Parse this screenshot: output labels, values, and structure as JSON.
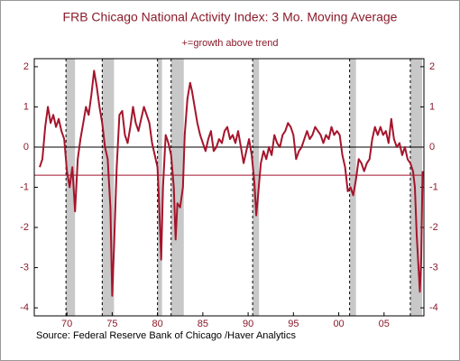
{
  "chart_data": {
    "type": "line",
    "title": "FRB Chicago National Activity Index: 3 Mo. Moving Average",
    "subtitle": "+=growth above trend",
    "source": "Source:  Federal Reserve Bank of Chicago /Haver Analytics",
    "x": [
      1967.0,
      1967.3,
      1967.6,
      1967.9,
      1968.2,
      1968.5,
      1968.8,
      1969.1,
      1969.4,
      1969.7,
      1970.0,
      1970.3,
      1970.6,
      1970.9,
      1971.2,
      1971.5,
      1971.8,
      1972.1,
      1972.4,
      1972.7,
      1973.0,
      1973.3,
      1973.6,
      1973.9,
      1974.2,
      1974.5,
      1974.8,
      1975.0,
      1975.2,
      1975.5,
      1975.8,
      1976.1,
      1976.4,
      1976.7,
      1977.0,
      1977.3,
      1977.6,
      1977.9,
      1978.2,
      1978.5,
      1978.8,
      1979.1,
      1979.4,
      1979.7,
      1980.0,
      1980.2,
      1980.4,
      1980.6,
      1980.9,
      1981.2,
      1981.5,
      1981.8,
      1982.0,
      1982.2,
      1982.5,
      1982.8,
      1983.0,
      1983.3,
      1983.6,
      1983.8,
      1984.1,
      1984.4,
      1984.7,
      1985.0,
      1985.3,
      1985.6,
      1985.9,
      1986.2,
      1986.5,
      1986.8,
      1987.1,
      1987.4,
      1987.7,
      1988.0,
      1988.3,
      1988.6,
      1988.9,
      1989.2,
      1989.5,
      1989.8,
      1990.1,
      1990.4,
      1990.7,
      1990.9,
      1991.1,
      1991.4,
      1991.7,
      1992.0,
      1992.3,
      1992.6,
      1992.9,
      1993.2,
      1993.5,
      1993.8,
      1994.1,
      1994.4,
      1994.7,
      1995.0,
      1995.3,
      1995.6,
      1995.9,
      1996.2,
      1996.5,
      1996.8,
      1997.1,
      1997.4,
      1997.7,
      1998.0,
      1998.3,
      1998.6,
      1998.9,
      1999.2,
      1999.5,
      1999.8,
      2000.1,
      2000.4,
      2000.7,
      2001.0,
      2001.3,
      2001.6,
      2001.9,
      2002.2,
      2002.5,
      2002.8,
      2003.1,
      2003.4,
      2003.7,
      2004.0,
      2004.3,
      2004.6,
      2004.9,
      2005.2,
      2005.5,
      2005.8,
      2006.1,
      2006.4,
      2006.7,
      2007.0,
      2007.3,
      2007.6,
      2007.9,
      2008.2,
      2008.4,
      2008.6,
      2008.8,
      2008.95,
      2009.1,
      2009.25
    ],
    "series": [
      {
        "color": "#a5152c",
        "values": [
          -0.5,
          -0.3,
          0.5,
          1.0,
          0.6,
          0.8,
          0.5,
          0.7,
          0.4,
          0.2,
          -0.6,
          -1.0,
          -0.5,
          -1.6,
          -0.3,
          0.2,
          0.6,
          1.0,
          0.8,
          1.3,
          1.9,
          1.5,
          1.0,
          0.6,
          0.0,
          -0.3,
          -1.5,
          -3.7,
          -2.5,
          -0.5,
          0.8,
          0.9,
          0.3,
          0.1,
          0.5,
          1.0,
          0.6,
          0.4,
          0.7,
          1.0,
          0.8,
          0.6,
          0.1,
          -0.2,
          -0.5,
          -1.5,
          -2.8,
          -1.0,
          0.3,
          0.1,
          -0.2,
          -1.0,
          -2.3,
          -1.4,
          -1.5,
          -1.0,
          0.3,
          1.2,
          1.6,
          1.4,
          1.0,
          0.6,
          0.3,
          0.1,
          -0.1,
          0.2,
          0.4,
          -0.1,
          0.0,
          0.2,
          0.1,
          0.4,
          0.5,
          0.2,
          0.3,
          0.1,
          0.4,
          0.0,
          -0.4,
          -0.1,
          0.2,
          -0.2,
          -0.9,
          -1.7,
          -1.2,
          -0.4,
          -0.1,
          -0.3,
          0.0,
          -0.2,
          0.3,
          0.1,
          0.0,
          0.3,
          0.4,
          0.6,
          0.5,
          0.3,
          -0.3,
          -0.1,
          0.0,
          0.2,
          0.4,
          0.2,
          0.3,
          0.5,
          0.4,
          0.3,
          0.1,
          0.3,
          0.2,
          0.5,
          0.3,
          0.4,
          0.3,
          -0.2,
          -0.5,
          -1.1,
          -1.0,
          -1.2,
          -0.8,
          -0.3,
          -0.4,
          -0.6,
          -0.4,
          -0.3,
          0.2,
          0.5,
          0.3,
          0.5,
          0.3,
          0.4,
          0.1,
          0.7,
          0.2,
          0.0,
          0.1,
          -0.2,
          0.0,
          -0.3,
          -0.4,
          -0.6,
          -1.0,
          -2.2,
          -3.0,
          -3.6,
          -2.8,
          -0.6
        ]
      }
    ],
    "reference_line": -0.7,
    "recessions": [
      [
        1969.9,
        1970.9
      ],
      [
        1973.9,
        1975.2
      ],
      [
        1980.0,
        1980.5
      ],
      [
        1981.5,
        1982.9
      ],
      [
        1990.5,
        1991.2
      ],
      [
        2001.2,
        2001.9
      ],
      [
        2007.9,
        2009.2
      ]
    ],
    "xlim": [
      1966.4,
      2009.4
    ],
    "xticks": [
      {
        "value": 1970,
        "label": "70"
      },
      {
        "value": 1975,
        "label": "75"
      },
      {
        "value": 1980,
        "label": "80"
      },
      {
        "value": 1985,
        "label": "85"
      },
      {
        "value": 1990,
        "label": "90"
      },
      {
        "value": 1995,
        "label": "95"
      },
      {
        "value": 2000,
        "label": "00"
      },
      {
        "value": 2005,
        "label": "05"
      }
    ],
    "ylim": [
      -4.2,
      2.2
    ],
    "yticks": [
      -4,
      -3,
      -2,
      -1,
      0,
      1,
      2
    ],
    "y2lim": [
      -4.2,
      2.2
    ],
    "y2ticks": [
      -4,
      -3,
      -2,
      -1,
      0,
      1,
      2
    ]
  }
}
